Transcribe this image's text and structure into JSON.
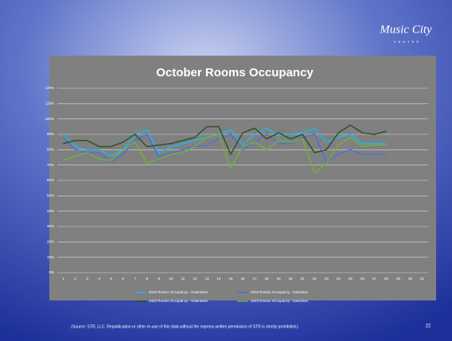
{
  "logo": {
    "name": "Music City",
    "tagline": "CENTER"
  },
  "chart_data": {
    "type": "line",
    "title": "October Rooms Occupancy",
    "categories": [
      "1",
      "2",
      "3",
      "4",
      "5",
      "6",
      "7",
      "8",
      "9",
      "10",
      "11",
      "12",
      "13",
      "14",
      "15",
      "16",
      "17",
      "18",
      "19",
      "20",
      "21",
      "22",
      "23",
      "24",
      "25",
      "26",
      "27",
      "28",
      "29",
      "30",
      "31"
    ],
    "series": [
      {
        "name": "2022 Rooms Occupancy - Downtown",
        "color": "#1fb8e6",
        "values": [
          90,
          82,
          80,
          80,
          76,
          80,
          90,
          93,
          78,
          82,
          84,
          86,
          88,
          90,
          93,
          83,
          90,
          94,
          89,
          90,
          91,
          94,
          85,
          88,
          90,
          84,
          84,
          84,
          null,
          null,
          null
        ]
      },
      {
        "name": "2022 Rooms Occupancy - Davidson",
        "color": "#4f6fd8",
        "values": [
          88,
          80,
          78,
          78,
          72,
          77,
          86,
          90,
          75,
          78,
          80,
          82,
          83,
          87,
          90,
          80,
          85,
          90,
          84,
          84,
          88,
          90,
          72,
          77,
          80,
          77,
          77,
          77,
          null,
          null,
          null
        ]
      },
      {
        "name": "2023 Rooms Occupancy - Downtown",
        "color": "#2f5224",
        "values": [
          84,
          86,
          86,
          82,
          82,
          85,
          90,
          82,
          83,
          84,
          86,
          88,
          95,
          95,
          77,
          91,
          94,
          87,
          91,
          87,
          90,
          78,
          80,
          91,
          96,
          91,
          90,
          92,
          null,
          null,
          null
        ]
      },
      {
        "name": "2023 Rooms Occupancy - Davidson",
        "color": "#70b040",
        "values": [
          73,
          76,
          78,
          74,
          73,
          80,
          85,
          71,
          74,
          77,
          78,
          82,
          88,
          90,
          68,
          82,
          85,
          80,
          86,
          85,
          87,
          65,
          71,
          83,
          88,
          82,
          83,
          83,
          null,
          null,
          null
        ]
      }
    ],
    "ylim": [
      0,
      120
    ],
    "yticks": [
      {
        "value": 0,
        "label": "0%"
      },
      {
        "value": 10,
        "label": "10%"
      },
      {
        "value": 20,
        "label": "20%"
      },
      {
        "value": 30,
        "label": "30%"
      },
      {
        "value": 40,
        "label": "40%"
      },
      {
        "value": 50,
        "label": "50%"
      },
      {
        "value": 60,
        "label": "60%"
      },
      {
        "value": 70,
        "label": "70%"
      },
      {
        "value": 80,
        "label": "80%"
      },
      {
        "value": 90,
        "label": "90%"
      },
      {
        "value": 100,
        "label": "100%"
      },
      {
        "value": 110,
        "label": "110%"
      },
      {
        "value": 120,
        "label": "120%"
      }
    ],
    "grid": true
  },
  "source": "(Source: STR, LLC. Republication or other re-use of this data without the express written permission of STR is strictly prohibited.)",
  "page_number": "22"
}
